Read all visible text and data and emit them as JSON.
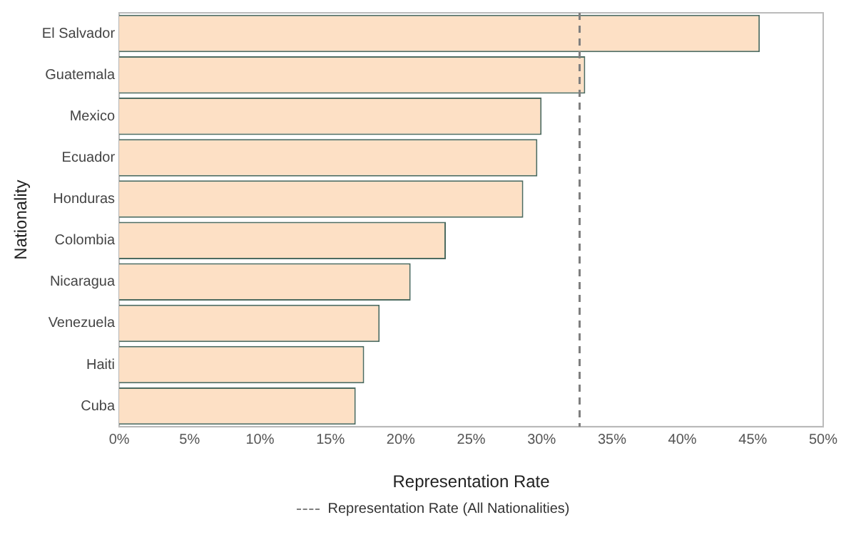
{
  "chart_data": {
    "type": "bar",
    "orientation": "horizontal",
    "xlabel": "Representation Rate",
    "ylabel": "Nationality",
    "categories": [
      "El Salvador",
      "Guatemala",
      "Mexico",
      "Ecuador",
      "Honduras",
      "Colombia",
      "Nicaragua",
      "Venezuela",
      "Haiti",
      "Cuba"
    ],
    "values": [
      45.5,
      33.1,
      30.0,
      29.7,
      28.7,
      23.2,
      20.7,
      18.5,
      17.4,
      16.8
    ],
    "color": "#fde0c5",
    "xlim": [
      0,
      50
    ],
    "xticks": [
      {
        "value": 0,
        "label": "0%"
      },
      {
        "value": 5,
        "label": "5%"
      },
      {
        "value": 10,
        "label": "10%"
      },
      {
        "value": 15,
        "label": "15%"
      },
      {
        "value": 20,
        "label": "20%"
      },
      {
        "value": 25,
        "label": "25%"
      },
      {
        "value": 30,
        "label": "30%"
      },
      {
        "value": 35,
        "label": "35%"
      },
      {
        "value": 40,
        "label": "40%"
      },
      {
        "value": 45,
        "label": "45%"
      },
      {
        "value": 50,
        "label": "50%"
      }
    ],
    "ref_lines": [
      {
        "axis": "x",
        "value": 32.7,
        "label": "Representation Rate (All Nationalities)",
        "color": "#7f7f7f",
        "line_style": "dashed"
      }
    ],
    "grid": false,
    "legend": "bottom"
  }
}
